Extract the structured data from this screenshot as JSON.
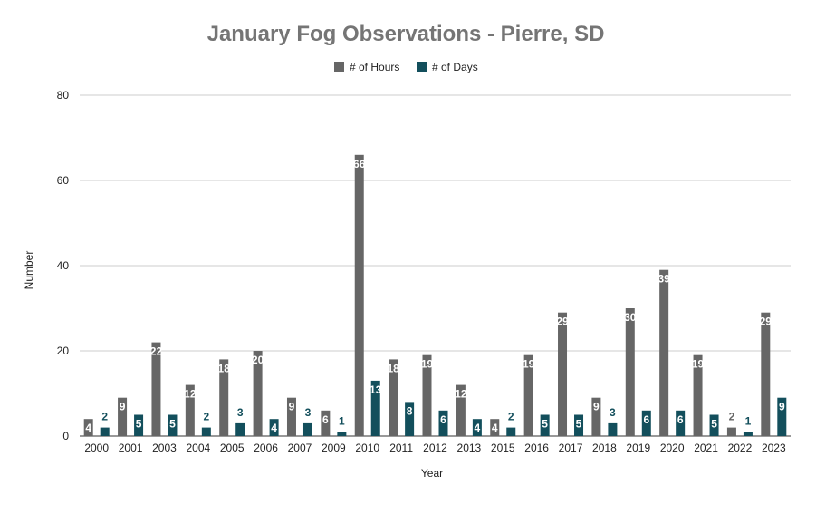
{
  "chart_data": {
    "type": "bar",
    "title": "January Fog Observations - Pierre, SD",
    "xlabel": "Year",
    "ylabel": "Number",
    "ylim": [
      0,
      80
    ],
    "yticks": [
      0,
      20,
      40,
      60,
      80
    ],
    "grid": true,
    "legend_position": "top",
    "categories": [
      "2000",
      "2001",
      "2003",
      "2004",
      "2005",
      "2006",
      "2007",
      "2009",
      "2010",
      "2011",
      "2012",
      "2013",
      "2015",
      "2016",
      "2017",
      "2018",
      "2019",
      "2020",
      "2021",
      "2022",
      "2023"
    ],
    "series": [
      {
        "name": "# of Hours",
        "color": "#666666",
        "values": [
          4,
          9,
          22,
          12,
          18,
          20,
          9,
          6,
          66,
          18,
          19,
          12,
          4,
          19,
          29,
          9,
          30,
          39,
          19,
          2,
          29
        ]
      },
      {
        "name": "# of Days",
        "color": "#134f5c",
        "values": [
          2,
          5,
          5,
          2,
          3,
          4,
          3,
          1,
          13,
          8,
          6,
          4,
          2,
          5,
          5,
          3,
          6,
          6,
          5,
          1,
          9
        ]
      }
    ]
  }
}
